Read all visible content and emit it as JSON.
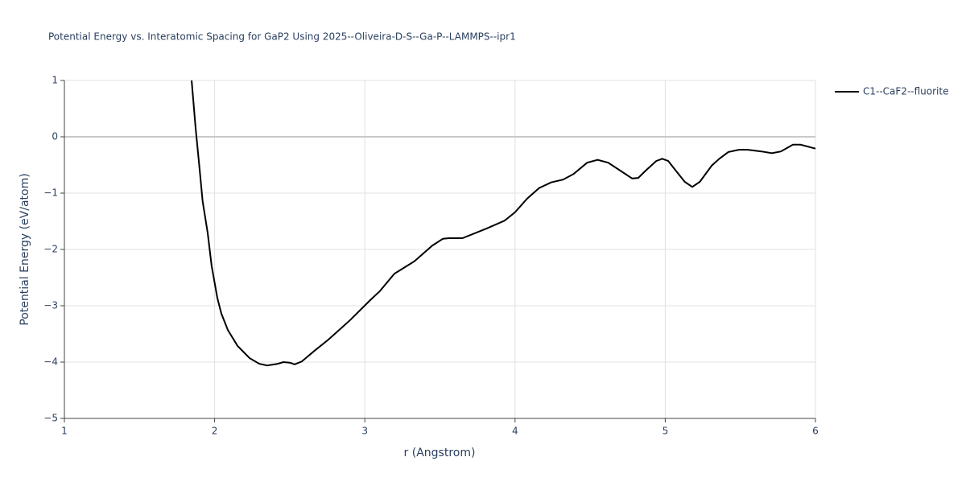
{
  "chart_data": {
    "type": "line",
    "title": "Potential Energy vs. Interatomic Spacing for GaP2 Using 2025--Oliveira-D-S--Ga-P--LAMMPS--ipr1",
    "xlabel": "r (Angstrom)",
    "ylabel": "Potential Energy (eV/atom)",
    "xlim": [
      1,
      6
    ],
    "ylim": [
      -5,
      1
    ],
    "xticks": [
      1,
      2,
      3,
      4,
      5,
      6
    ],
    "yticks": [
      {
        "value": -5,
        "label": "−5"
      },
      {
        "value": -4,
        "label": "−4"
      },
      {
        "value": -3,
        "label": "−3"
      },
      {
        "value": -2,
        "label": "−2"
      },
      {
        "value": -1,
        "label": "−1"
      },
      0,
      1
    ],
    "grid": true,
    "legend": "top-right",
    "series": [
      {
        "name": "C1--CaF2--fluorite",
        "color": "#000000",
        "x": [
          1.847,
          1.874,
          1.9,
          1.92,
          1.954,
          1.98,
          2.018,
          2.045,
          2.088,
          2.152,
          2.233,
          2.297,
          2.35,
          2.42,
          2.458,
          2.5,
          2.533,
          2.58,
          2.66,
          2.758,
          2.9,
          3.036,
          3.1,
          3.197,
          3.33,
          3.45,
          3.52,
          3.56,
          3.65,
          3.81,
          3.93,
          4.0,
          4.08,
          4.16,
          4.24,
          4.32,
          4.39,
          4.48,
          4.55,
          4.62,
          4.7,
          4.78,
          4.82,
          4.87,
          4.94,
          4.98,
          5.02,
          5.07,
          5.13,
          5.18,
          5.23,
          5.31,
          5.36,
          5.42,
          5.49,
          5.55,
          5.64,
          5.71,
          5.77,
          5.85,
          5.9,
          6.0
        ],
        "values": [
          1,
          0.14,
          -0.57,
          -1.14,
          -1.71,
          -2.29,
          -2.86,
          -3.14,
          -3.43,
          -3.71,
          -3.93,
          -4.03,
          -4.06,
          -4.03,
          -4.0,
          -4.01,
          -4.04,
          -3.99,
          -3.81,
          -3.6,
          -3.26,
          -2.9,
          -2.74,
          -2.43,
          -2.21,
          -1.93,
          -1.81,
          -1.8,
          -1.8,
          -1.63,
          -1.49,
          -1.34,
          -1.1,
          -0.91,
          -0.81,
          -0.76,
          -0.66,
          -0.46,
          -0.41,
          -0.46,
          -0.6,
          -0.74,
          -0.73,
          -0.6,
          -0.43,
          -0.39,
          -0.43,
          -0.6,
          -0.8,
          -0.89,
          -0.8,
          -0.51,
          -0.39,
          -0.27,
          -0.23,
          -0.23,
          -0.26,
          -0.29,
          -0.26,
          -0.14,
          -0.14,
          -0.21
        ]
      }
    ]
  }
}
